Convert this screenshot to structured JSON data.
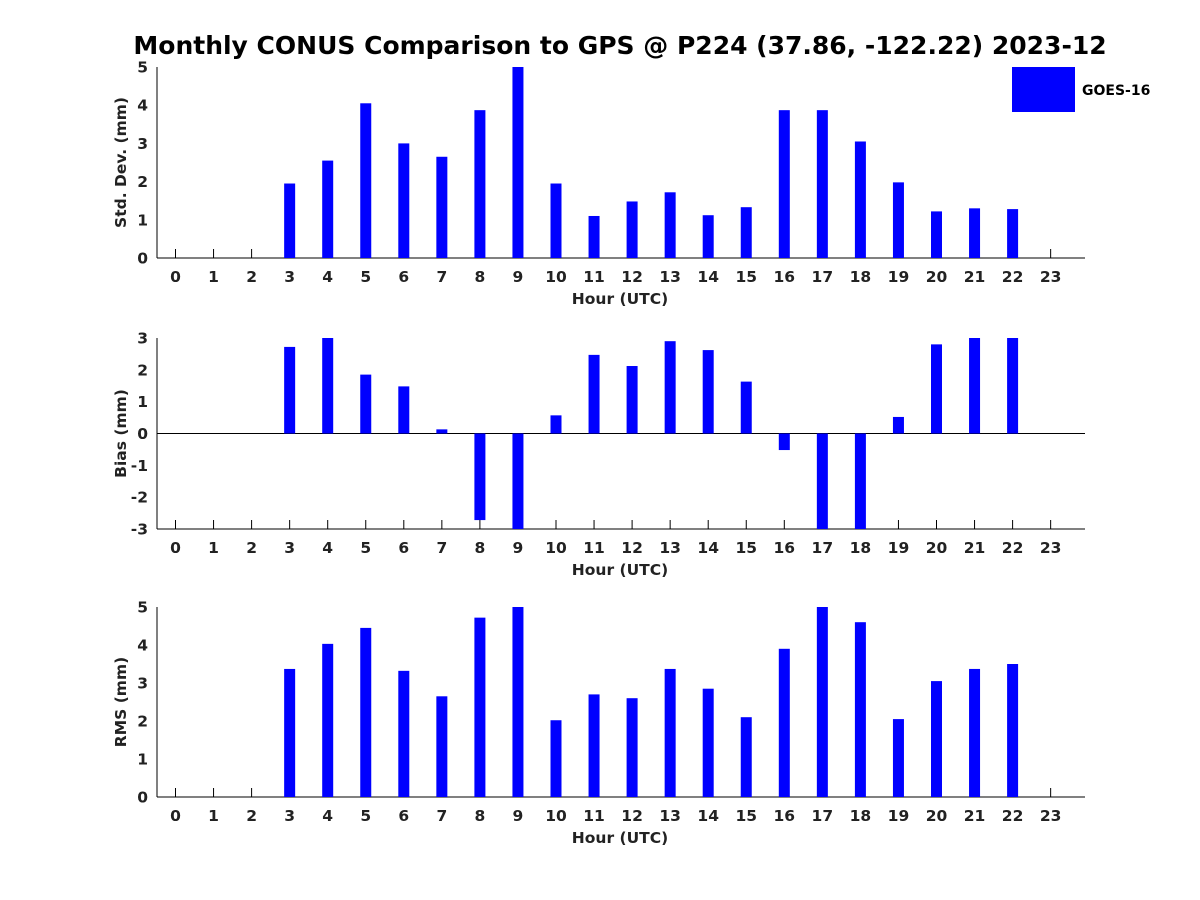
{
  "figure_title": "Monthly CONUS Comparison to GPS @ P224 (37.86, -122.22) 2023-12",
  "legend": {
    "label": "GOES-16",
    "color": "#0000ff"
  },
  "chart_data": [
    {
      "type": "bar",
      "series_name": "GOES-16",
      "color": "#0000ff",
      "xlabel": "Hour (UTC)",
      "ylabel": "Std. Dev. (mm)",
      "ylim": [
        0,
        5
      ],
      "yticks": [
        0,
        1,
        2,
        3,
        4,
        5
      ],
      "categories": [
        "0",
        "1",
        "2",
        "3",
        "4",
        "5",
        "6",
        "7",
        "8",
        "9",
        "10",
        "11",
        "12",
        "13",
        "14",
        "15",
        "16",
        "17",
        "18",
        "19",
        "20",
        "21",
        "22",
        "23"
      ],
      "values": [
        null,
        null,
        null,
        1.95,
        2.55,
        4.05,
        3.0,
        2.65,
        3.87,
        5.0,
        1.95,
        1.1,
        1.48,
        1.72,
        1.12,
        1.33,
        3.87,
        3.87,
        3.05,
        1.98,
        1.22,
        1.3,
        1.28,
        null
      ]
    },
    {
      "type": "bar",
      "series_name": "GOES-16",
      "color": "#0000ff",
      "xlabel": "Hour (UTC)",
      "ylabel": "Bias (mm)",
      "ylim": [
        -3,
        3
      ],
      "yticks": [
        -3,
        -2,
        -1,
        0,
        1,
        2,
        3
      ],
      "categories": [
        "0",
        "1",
        "2",
        "3",
        "4",
        "5",
        "6",
        "7",
        "8",
        "9",
        "10",
        "11",
        "12",
        "13",
        "14",
        "15",
        "16",
        "17",
        "18",
        "19",
        "20",
        "21",
        "22",
        "23"
      ],
      "values": [
        null,
        null,
        null,
        2.72,
        3.0,
        1.85,
        1.48,
        0.13,
        -2.72,
        -3.0,
        0.57,
        2.47,
        2.12,
        2.9,
        2.62,
        1.63,
        -0.52,
        -3.0,
        -3.0,
        0.52,
        2.8,
        3.0,
        3.0,
        null
      ]
    },
    {
      "type": "bar",
      "series_name": "GOES-16",
      "color": "#0000ff",
      "xlabel": "Hour (UTC)",
      "ylabel": "RMS (mm)",
      "ylim": [
        0,
        5
      ],
      "yticks": [
        0,
        1,
        2,
        3,
        4,
        5
      ],
      "categories": [
        "0",
        "1",
        "2",
        "3",
        "4",
        "5",
        "6",
        "7",
        "8",
        "9",
        "10",
        "11",
        "12",
        "13",
        "14",
        "15",
        "16",
        "17",
        "18",
        "19",
        "20",
        "21",
        "22",
        "23"
      ],
      "values": [
        null,
        null,
        null,
        3.37,
        4.03,
        4.45,
        3.32,
        2.65,
        4.72,
        5.0,
        2.02,
        2.7,
        2.6,
        3.37,
        2.85,
        2.1,
        3.9,
        5.0,
        4.6,
        2.05,
        3.05,
        3.37,
        3.5,
        null
      ]
    }
  ]
}
